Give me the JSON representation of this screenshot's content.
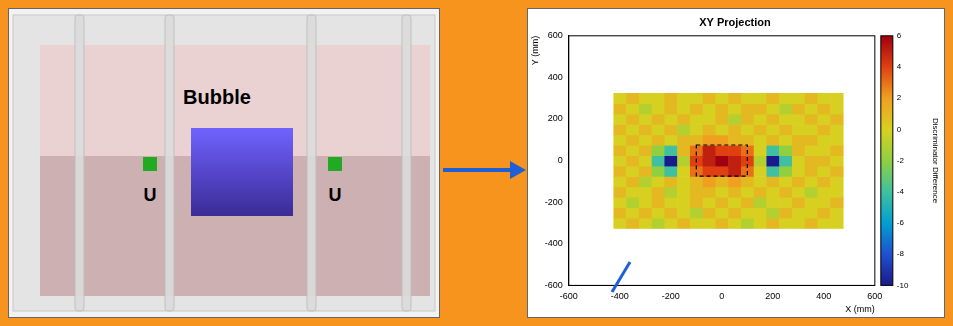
{
  "diagram": {
    "bubble_label": "Bubble",
    "source_labels": [
      "U",
      "U"
    ]
  },
  "chart_data": {
    "type": "heatmap",
    "title": "XY Projection",
    "x_label": "X (mm)",
    "y_label": "Y (mm)",
    "xlim": [
      -600,
      600
    ],
    "xticks": [
      -600,
      -400,
      -200,
      0,
      200,
      400,
      600
    ],
    "ylim": [
      -600,
      600
    ],
    "yticks": [
      -600,
      -400,
      -200,
      0,
      200,
      400,
      600
    ],
    "grid": false,
    "heatmap": {
      "x": [
        -400,
        -350,
        -300,
        -250,
        -200,
        -150,
        -100,
        -50,
        0,
        50,
        100,
        150,
        200,
        250,
        300,
        350,
        400,
        450
      ],
      "y": [
        -300,
        -250,
        -200,
        -150,
        -100,
        -50,
        0,
        50,
        100,
        150,
        200,
        250,
        300
      ],
      "z": [
        [
          0,
          1,
          0,
          -1,
          0,
          1,
          0,
          0,
          1,
          0,
          -1,
          0,
          1,
          0,
          0,
          1,
          0,
          0
        ],
        [
          1,
          0,
          1,
          0,
          1,
          0,
          -1,
          1,
          0,
          1,
          0,
          0,
          -1,
          1,
          0,
          0,
          1,
          0
        ],
        [
          0,
          -1,
          0,
          1,
          0,
          0,
          1,
          0,
          1,
          0,
          1,
          -1,
          0,
          0,
          1,
          0,
          0,
          1
        ],
        [
          1,
          0,
          0,
          1,
          -1,
          0,
          1,
          1,
          0,
          1,
          0,
          1,
          0,
          1,
          0,
          -1,
          0,
          0
        ],
        [
          0,
          1,
          -1,
          0,
          1,
          0,
          1,
          2,
          1,
          2,
          1,
          0,
          1,
          0,
          1,
          0,
          1,
          0
        ],
        [
          1,
          0,
          1,
          -2,
          -4,
          0,
          3,
          4,
          4,
          5,
          3,
          0,
          -4,
          -2,
          0,
          1,
          0,
          1
        ],
        [
          0,
          1,
          0,
          -4,
          -10,
          -1,
          4,
          5,
          6,
          5,
          4,
          -1,
          -10,
          -4,
          0,
          1,
          1,
          0
        ],
        [
          1,
          0,
          1,
          -2,
          -4,
          1,
          3,
          5,
          4,
          4,
          3,
          0,
          -4,
          -2,
          1,
          0,
          0,
          1
        ],
        [
          0,
          1,
          0,
          1,
          0,
          1,
          1,
          2,
          2,
          1,
          1,
          0,
          1,
          0,
          1,
          1,
          0,
          0
        ],
        [
          1,
          0,
          1,
          0,
          1,
          -1,
          0,
          1,
          0,
          1,
          0,
          1,
          0,
          1,
          0,
          0,
          1,
          0
        ],
        [
          0,
          1,
          0,
          1,
          0,
          1,
          0,
          0,
          1,
          -1,
          1,
          0,
          1,
          0,
          0,
          1,
          0,
          1
        ],
        [
          1,
          0,
          -1,
          0,
          1,
          0,
          1,
          0,
          1,
          0,
          1,
          1,
          0,
          -1,
          1,
          0,
          1,
          0
        ],
        [
          0,
          1,
          0,
          0,
          1,
          0,
          0,
          1,
          0,
          1,
          0,
          0,
          1,
          0,
          0,
          1,
          0,
          0
        ]
      ]
    },
    "annotation_box": {
      "x": [
        -100,
        100
      ],
      "y": [
        -75,
        75
      ]
    },
    "colorbar": {
      "title": "Discriminator Difference",
      "range": [
        -10,
        6
      ],
      "ticks": [
        -10,
        -8,
        -6,
        -4,
        -2,
        0,
        2,
        4,
        6
      ]
    }
  }
}
